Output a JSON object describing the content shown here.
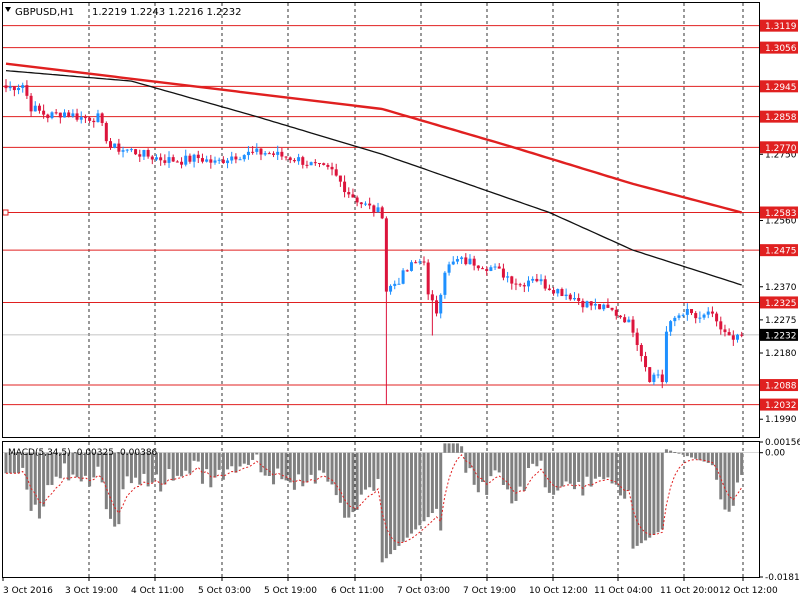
{
  "header": {
    "symbol_label": "GBPUSD,H1",
    "ohlc_label": "1.2219 1.2243 1.2216 1.2232"
  },
  "colors": {
    "background": "#ffffff",
    "grid": "#000000",
    "bull_candle": "#1e90ff",
    "bear_candle": "#dc143c",
    "ma_slow": "#e02020",
    "ma_fast": "#111111",
    "level_line": "#e02020",
    "macd_hist": "#808080",
    "macd_signal": "#e02020"
  },
  "chart_data": [
    {
      "type": "candlestick",
      "title": "GBPUSD,H1",
      "ylim": [
        1.1939,
        1.3184
      ],
      "price_ticks": [
        {
          "value": 1.3056,
          "label": "1.3056"
        },
        {
          "value": 1.2945,
          "label": "1.2945"
        },
        {
          "value": 1.2858,
          "label": "1.2858"
        },
        {
          "value": 1.275,
          "label": "1.2750"
        },
        {
          "value": 1.256,
          "label": "1.2560"
        },
        {
          "value": 1.237,
          "label": "1.2370"
        },
        {
          "value": 1.2275,
          "label": "1.2275"
        },
        {
          "value": 1.218,
          "label": "1.2180"
        },
        {
          "value": 1.199,
          "label": "1.1990"
        }
      ],
      "horizontal_levels": [
        {
          "value": 1.3119,
          "label": "1.3119"
        },
        {
          "value": 1.3056,
          "label": "1.3056"
        },
        {
          "value": 1.2945,
          "label": "1.2945"
        },
        {
          "value": 1.2858,
          "label": "1.2858"
        },
        {
          "value": 1.277,
          "label": "1.2770"
        },
        {
          "value": 1.2583,
          "label": "1.2583"
        },
        {
          "value": 1.2475,
          "label": "1.2475"
        },
        {
          "value": 1.2325,
          "label": "1.2325"
        },
        {
          "value": 1.2088,
          "label": "1.2088"
        },
        {
          "value": 1.2032,
          "label": "1.2032"
        }
      ],
      "current_price": {
        "value": 1.2232,
        "label": "1.2232"
      },
      "x_tick_labels": [
        "3 Oct 2016",
        "3 Oct 19:00",
        "4 Oct 11:00",
        "5 Oct 03:00",
        "5 Oct 19:00",
        "6 Oct 11:00",
        "7 Oct 03:00",
        "7 Oct 19:00",
        "10 Oct 12:00",
        "11 Oct 04:00",
        "11 Oct 20:00",
        "12 Oct 12:00"
      ],
      "close_path": [
        [
          0,
          1.294
        ],
        [
          4,
          1.295
        ],
        [
          6,
          1.2885
        ],
        [
          10,
          1.286
        ],
        [
          14,
          1.287
        ],
        [
          18,
          1.2855
        ],
        [
          22,
          1.2855
        ],
        [
          25,
          1.277
        ],
        [
          30,
          1.276
        ],
        [
          34,
          1.2745
        ],
        [
          38,
          1.2735
        ],
        [
          42,
          1.2732
        ],
        [
          46,
          1.274
        ],
        [
          50,
          1.2725
        ],
        [
          54,
          1.2745
        ],
        [
          58,
          1.2752
        ],
        [
          62,
          1.2755
        ],
        [
          66,
          1.2745
        ],
        [
          70,
          1.2735
        ],
        [
          74,
          1.2715
        ],
        [
          78,
          1.27
        ],
        [
          82,
          1.264
        ],
        [
          85,
          1.261
        ],
        [
          88,
          1.259
        ],
        [
          90,
          1.258
        ],
        [
          91,
          1.236
        ],
        [
          94,
          1.239
        ],
        [
          97,
          1.243
        ],
        [
          100,
          1.245
        ],
        [
          101,
          1.234
        ],
        [
          103,
          1.23
        ],
        [
          105,
          1.242
        ],
        [
          108,
          1.2445
        ],
        [
          112,
          1.244
        ],
        [
          116,
          1.2425
        ],
        [
          120,
          1.24
        ],
        [
          123,
          1.2375
        ],
        [
          126,
          1.24
        ],
        [
          129,
          1.2375
        ],
        [
          132,
          1.236
        ],
        [
          135,
          1.2345
        ],
        [
          138,
          1.2325
        ],
        [
          142,
          1.231
        ],
        [
          145,
          1.23
        ],
        [
          148,
          1.228
        ],
        [
          150,
          1.225
        ],
        [
          152,
          1.218
        ],
        [
          154,
          1.211
        ],
        [
          156,
          1.212
        ],
        [
          157,
          1.21
        ],
        [
          158,
          1.224
        ],
        [
          160,
          1.228
        ],
        [
          162,
          1.23
        ],
        [
          164,
          1.229
        ],
        [
          166,
          1.227
        ],
        [
          168,
          1.23
        ],
        [
          170,
          1.226
        ],
        [
          172,
          1.224
        ],
        [
          174,
          1.221
        ],
        [
          176,
          1.2232
        ]
      ],
      "ma_slow": {
        "name": "",
        "points": [
          [
            0,
            1.301
          ],
          [
            45,
            1.2945
          ],
          [
            90,
            1.288
          ],
          [
            120,
            1.2775
          ],
          [
            150,
            1.2665
          ],
          [
            176,
            1.2583
          ]
        ]
      },
      "ma_fast": {
        "name": "",
        "points": [
          [
            0,
            1.299
          ],
          [
            30,
            1.296
          ],
          [
            60,
            1.2858
          ],
          [
            90,
            1.275
          ],
          [
            130,
            1.2583
          ],
          [
            150,
            1.2475
          ],
          [
            176,
            1.2375
          ]
        ]
      },
      "bars": 177
    },
    {
      "type": "bar",
      "title": "MACD(5,34,5) -0.00325 -0.00386",
      "ylim": [
        -0.01814,
        0.00156
      ],
      "y_tick_labels": [
        {
          "value": 0.00156,
          "label": "0.00156"
        },
        {
          "value": 0.0,
          "label": "0.00"
        },
        {
          "value": -0.01814,
          "label": "-0.01814"
        }
      ]
    }
  ]
}
